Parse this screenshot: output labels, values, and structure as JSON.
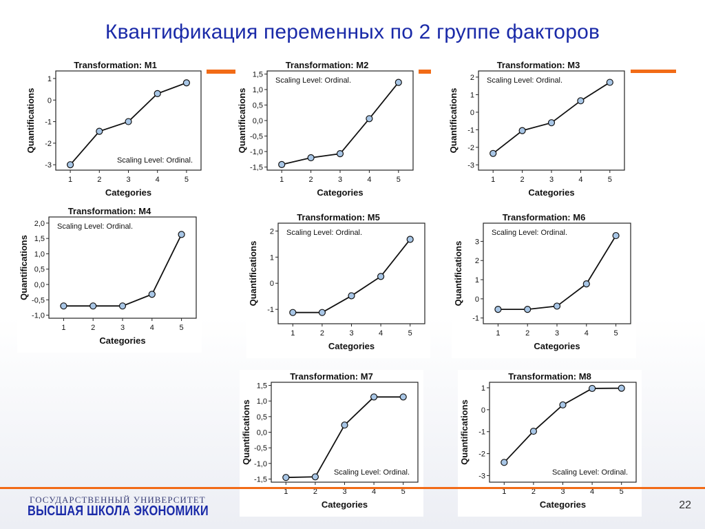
{
  "slide": {
    "title": "Квантификация переменных по 2 группе факторов",
    "page_number": "22",
    "university_top": "ГОСУДАРСТВЕННЫЙ УНИВЕРСИТЕТ",
    "university_bottom": "ВЫСШАЯ ШКОЛА ЭКОНОМИКИ",
    "colors": {
      "title": "#1a2aa8",
      "accent": "#f26b16",
      "marker": "#a8c6e6"
    }
  },
  "chart_data": [
    {
      "type": "line",
      "title": "Transformation: M1",
      "xlabel": "Categories",
      "ylabel": "Quantifications",
      "annotation": "Scaling Level: Ordinal.",
      "annotation_position": "bottom-right",
      "categories": [
        "1",
        "2",
        "3",
        "4",
        "5"
      ],
      "values": [
        -3.0,
        -1.45,
        -1.0,
        0.3,
        0.8
      ],
      "ylim": [
        -3.25,
        1.35
      ],
      "yticks": [
        -3,
        -2,
        -1,
        0,
        1
      ],
      "yticklabels": [
        "-3",
        "-2",
        "-1",
        "0",
        "1"
      ]
    },
    {
      "type": "line",
      "title": "Transformation: M2",
      "xlabel": "Categories",
      "ylabel": "Quantifications",
      "annotation": "Scaling Level: Ordinal.",
      "annotation_position": "top-left",
      "categories": [
        "1",
        "2",
        "3",
        "4",
        "5"
      ],
      "values": [
        -1.42,
        -1.2,
        -1.07,
        0.06,
        1.23
      ],
      "ylim": [
        -1.6,
        1.6
      ],
      "yticks": [
        -1.5,
        -1.0,
        -0.5,
        0.0,
        0.5,
        1.0,
        1.5
      ],
      "yticklabels": [
        "-1,5",
        "-1,0",
        "-0,5",
        "0,0",
        "0,5",
        "1,0",
        "1,5"
      ]
    },
    {
      "type": "line",
      "title": "Transformation: M3",
      "xlabel": "Categories",
      "ylabel": "Quantifications",
      "annotation": "Scaling Level: Ordinal.",
      "annotation_position": "top-left",
      "categories": [
        "1",
        "2",
        "3",
        "4",
        "5"
      ],
      "values": [
        -2.35,
        -1.05,
        -0.6,
        0.65,
        1.7
      ],
      "ylim": [
        -3.3,
        2.35
      ],
      "yticks": [
        -3,
        -2,
        -1,
        0,
        1,
        2
      ],
      "yticklabels": [
        "-3",
        "-2",
        "-1",
        "0",
        "1",
        "2"
      ]
    },
    {
      "type": "line",
      "title": "Transformation: M4",
      "xlabel": "Categories",
      "ylabel": "Quantifications",
      "annotation": "Scaling Level: Ordinal.",
      "annotation_position": "top-left",
      "categories": [
        "1",
        "2",
        "3",
        "4",
        "5"
      ],
      "values": [
        -0.7,
        -0.7,
        -0.7,
        -0.32,
        1.63
      ],
      "ylim": [
        -1.1,
        2.2
      ],
      "yticks": [
        -1.0,
        -0.5,
        0.0,
        0.5,
        1.0,
        1.5,
        2.0
      ],
      "yticklabels": [
        "-1,0",
        "-0,5",
        "0,0",
        "0,5",
        "1,0",
        "1,5",
        "2,0"
      ]
    },
    {
      "type": "line",
      "title": "Transformation: M5",
      "xlabel": "Categories",
      "ylabel": "Quantifications",
      "annotation": "Scaling Level: Ordinal.",
      "annotation_position": "top-left",
      "categories": [
        "1",
        "2",
        "3",
        "4",
        "5"
      ],
      "values": [
        -1.12,
        -1.12,
        -0.48,
        0.26,
        1.68
      ],
      "ylim": [
        -1.55,
        2.3
      ],
      "yticks": [
        -1,
        0,
        1,
        2
      ],
      "yticklabels": [
        "-1",
        "0",
        "1",
        "2"
      ]
    },
    {
      "type": "line",
      "title": "Transformation: M6",
      "xlabel": "Categories",
      "ylabel": "Quantifications",
      "annotation": "Scaling Level: Ordinal.",
      "annotation_position": "top-left",
      "categories": [
        "1",
        "2",
        "3",
        "4",
        "5"
      ],
      "values": [
        -0.55,
        -0.55,
        -0.38,
        0.78,
        3.3
      ],
      "ylim": [
        -1.3,
        3.95
      ],
      "yticks": [
        -1,
        0,
        1,
        2,
        3
      ],
      "yticklabels": [
        "-1",
        "0",
        "1",
        "2",
        "3"
      ]
    },
    {
      "type": "line",
      "title": "Transformation: M7",
      "xlabel": "Categories",
      "ylabel": "Quantifications",
      "annotation": "Scaling Level: Ordinal.",
      "annotation_position": "bottom-right",
      "categories": [
        "1",
        "2",
        "3",
        "4",
        "5"
      ],
      "values": [
        -1.45,
        -1.43,
        0.23,
        1.13,
        1.13
      ],
      "ylim": [
        -1.6,
        1.6
      ],
      "yticks": [
        -1.5,
        -1.0,
        -0.5,
        0.0,
        0.5,
        1.0,
        1.5
      ],
      "yticklabels": [
        "-1,5",
        "-1,0",
        "-0,5",
        "0,0",
        "0,5",
        "1,0",
        "1,5"
      ]
    },
    {
      "type": "line",
      "title": "Transformation: M8",
      "xlabel": "Categories",
      "ylabel": "Quantifications",
      "annotation": "Scaling Level: Ordinal.",
      "annotation_position": "bottom-right",
      "categories": [
        "1",
        "2",
        "3",
        "4",
        "5"
      ],
      "values": [
        -2.4,
        -0.98,
        0.22,
        0.97,
        0.98
      ],
      "ylim": [
        -3.3,
        1.25
      ],
      "yticks": [
        -3,
        -2,
        -1,
        0,
        1
      ],
      "yticklabels": [
        "-3",
        "-2",
        "-1",
        "0",
        "1"
      ]
    }
  ]
}
